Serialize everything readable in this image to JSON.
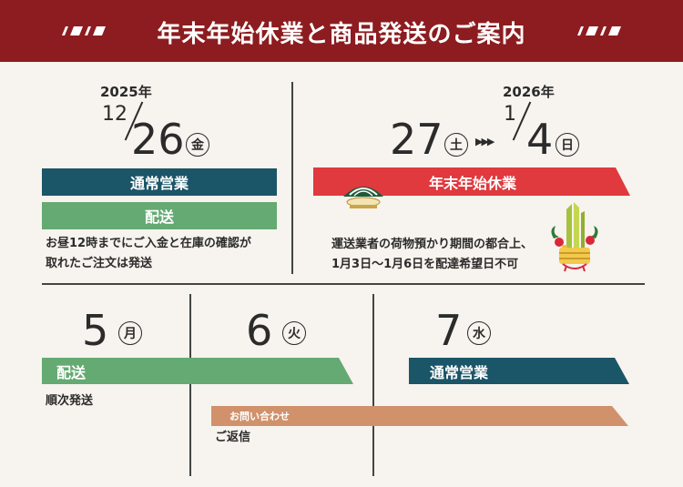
{
  "header": {
    "title": "年末年始休業と商品発送のご案内"
  },
  "dec26": {
    "year": "2025年",
    "month": "12",
    "day": "26",
    "weekday": "金",
    "bar_business": "通常営業",
    "bar_shipping": "配送",
    "note_line1": "お昼12時までにご入金と在庫の確認が",
    "note_line2": "取れたご注文は発送"
  },
  "holiday": {
    "year": "2026年",
    "start_day": "27",
    "start_weekday": "土",
    "arrows": "▶▶▶",
    "end_month": "1",
    "end_day": "4",
    "end_weekday": "日",
    "bar_label": "年末年始休業",
    "note_line1": "運送業者の荷物預かり期間の都合上、",
    "note_line2": "1月3日〜1月6日を配達希望日不可"
  },
  "jan5": {
    "day": "5",
    "weekday": "月",
    "bar_label": "配送",
    "note": "順次発送"
  },
  "jan6": {
    "day": "6",
    "weekday": "火",
    "inquiry_label": "お問い合わせ",
    "note": "ご返信"
  },
  "jan7": {
    "day": "7",
    "weekday": "水",
    "bar_label": "通常営業"
  },
  "colors": {
    "header": "#8c1c1f",
    "navy": "#1b5568",
    "green": "#64aa72",
    "red": "#e0393e",
    "tan": "#d0916b",
    "background": "#f7f3ee"
  }
}
